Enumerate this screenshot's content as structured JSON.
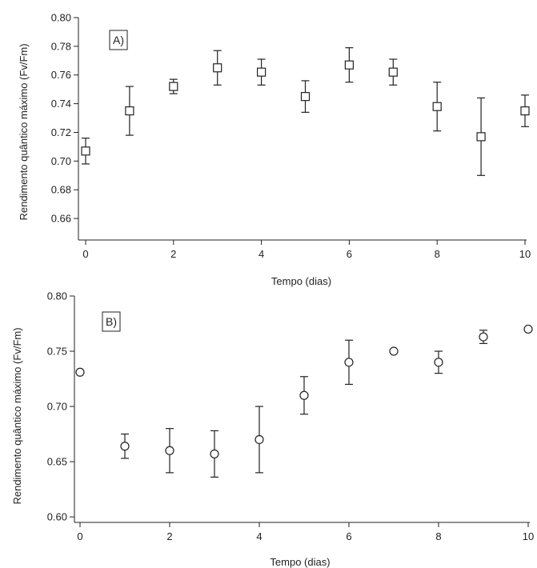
{
  "chart_data": [
    {
      "panel": "A)",
      "type": "scatter",
      "marker": "square",
      "xlabel": "Tempo (dias)",
      "ylabel": "Rendimento quântico máximo (Fv/Fm)",
      "xlim": [
        0,
        10
      ],
      "ylim": [
        0.645,
        0.8
      ],
      "x_ticks": [
        "0",
        "2",
        "4",
        "6",
        "8",
        "10"
      ],
      "y_ticks": [
        "0.66",
        "0.68",
        "0.70",
        "0.72",
        "0.74",
        "0.76",
        "0.78",
        "0.80"
      ],
      "series": [
        {
          "x": [
            0,
            1,
            2,
            3,
            4,
            5,
            6,
            7,
            8,
            9,
            10
          ],
          "y": [
            0.707,
            0.735,
            0.752,
            0.765,
            0.762,
            0.745,
            0.767,
            0.762,
            0.738,
            0.717,
            0.735
          ],
          "err": [
            0.009,
            0.017,
            0.005,
            0.012,
            0.009,
            0.011,
            0.012,
            0.009,
            0.017,
            0.027,
            0.011
          ]
        }
      ]
    },
    {
      "panel": "B)",
      "type": "scatter",
      "marker": "circle",
      "xlabel": "Tempo (dias)",
      "ylabel": "Rendimento quântico máximo (Fv/Fm)",
      "xlim": [
        0,
        10
      ],
      "ylim": [
        0.595,
        0.8
      ],
      "x_ticks": [
        "0",
        "2",
        "4",
        "6",
        "8",
        "10"
      ],
      "y_ticks": [
        "0.60",
        "0.65",
        "0.70",
        "0.75",
        "0.80"
      ],
      "series": [
        {
          "x": [
            0,
            1,
            2,
            3,
            4,
            5,
            6,
            7,
            8,
            9,
            10
          ],
          "y": [
            0.731,
            0.664,
            0.66,
            0.657,
            0.67,
            0.71,
            0.74,
            0.75,
            0.74,
            0.763,
            0.77
          ],
          "err": [
            0.0,
            0.011,
            0.02,
            0.021,
            0.03,
            0.017,
            0.02,
            0.0,
            0.01,
            0.006,
            0.0
          ]
        }
      ]
    }
  ]
}
